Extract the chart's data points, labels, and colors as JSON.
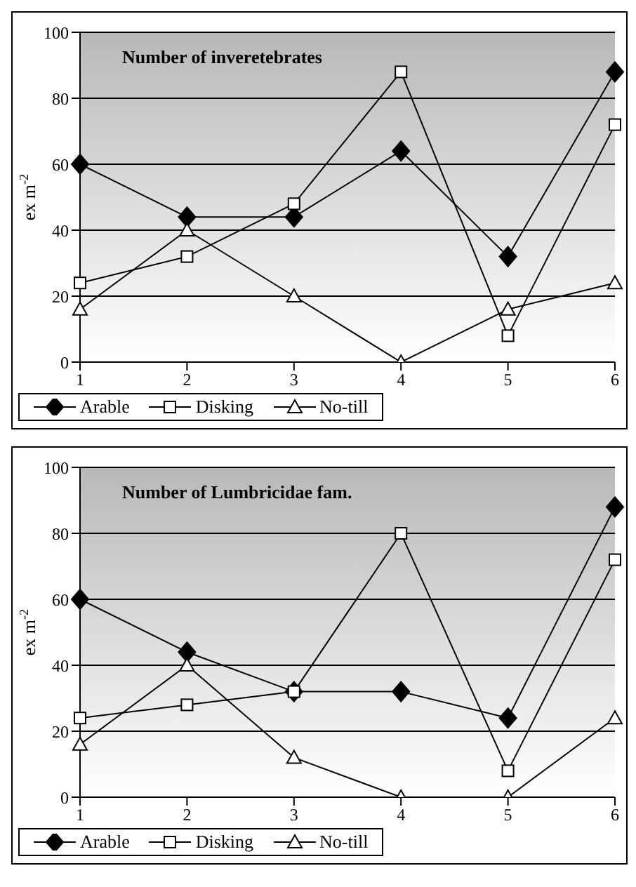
{
  "chart_data": [
    {
      "type": "line",
      "title": "Number of inveretebrates",
      "ylabel": "ex m$^{-2}$",
      "categories": [
        "1",
        "2",
        "3",
        "4",
        "5",
        "6"
      ],
      "ylim": [
        0,
        100
      ],
      "yticks": [
        0,
        20,
        40,
        60,
        80,
        100
      ],
      "grid": "y",
      "legend": "bottom",
      "line_style": "solid",
      "series": [
        {
          "name": "Arable",
          "color": "#000000",
          "marker": "diamond",
          "values": [
            60,
            44,
            44,
            64,
            32,
            88
          ]
        },
        {
          "name": "Disking",
          "color": "#000000",
          "marker": "square",
          "values": [
            24,
            32,
            48,
            88,
            8,
            72
          ]
        },
        {
          "name": "No-till",
          "color": "#000000",
          "marker": "triangle",
          "values": [
            16,
            40,
            20,
            0,
            16,
            24
          ]
        }
      ]
    },
    {
      "type": "line",
      "title": "Number of Lumbricidae fam.",
      "ylabel": "ex m$^{-2}$",
      "categories": [
        "1",
        "2",
        "3",
        "4",
        "5",
        "6"
      ],
      "ylim": [
        0,
        100
      ],
      "yticks": [
        0,
        20,
        40,
        60,
        80,
        100
      ],
      "grid": "y",
      "legend": "bottom",
      "line_style": "solid",
      "series": [
        {
          "name": "Arable",
          "color": "#000000",
          "marker": "diamond",
          "values": [
            60,
            44,
            32,
            32,
            24,
            88
          ]
        },
        {
          "name": "Disking",
          "color": "#000000",
          "marker": "square",
          "values": [
            24,
            28,
            32,
            80,
            8,
            72
          ]
        },
        {
          "name": "No-till",
          "color": "#000000",
          "marker": "triangle",
          "values": [
            16,
            40,
            12,
            0,
            0,
            24
          ]
        }
      ]
    }
  ]
}
